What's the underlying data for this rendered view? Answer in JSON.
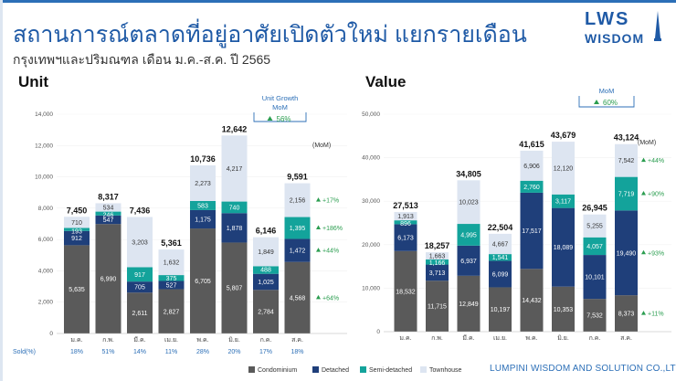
{
  "header": {
    "title": "สถานการณ์ตลาดที่อยู่อาศัยเปิดตัวใหม่ แยกรายเดือน",
    "subtitle": "กรุงเทพฯและปริมณฑล เดือน ม.ค.-ส.ค. ปี 2565"
  },
  "logo": {
    "line1": "LWS",
    "line2": "WISDOM"
  },
  "footer": "LUMPINI WISDOM AND SOLUTION CO.,LTD.",
  "colors": {
    "condominium": "#5a5a5a",
    "detached": "#1f3f7a",
    "semi_detached": "#13a39b",
    "townhouse": "#dde5f1",
    "growth": "#2a9d4f",
    "accent": "#2c6fb7"
  },
  "legend": [
    "Condominium",
    "Detached",
    "Semi-detached",
    "Townhouse"
  ],
  "chart_data": [
    {
      "type": "bar",
      "title": "Unit",
      "categories": [
        "ม.ค.",
        "ก.พ.",
        "มี.ค.",
        "เม.ย.",
        "พ.ค.",
        "มิ.ย.",
        "ก.ค.",
        "ส.ค."
      ],
      "series": [
        {
          "name": "Condominium",
          "values": [
            5635,
            6990,
            2611,
            2827,
            6705,
            5807,
            2784,
            4568
          ]
        },
        {
          "name": "Detached",
          "values": [
            912,
            547,
            705,
            527,
            1175,
            1878,
            1025,
            1472
          ]
        },
        {
          "name": "Semi-detached",
          "values": [
            193,
            246,
            917,
            375,
            583,
            740,
            488,
            1395
          ]
        },
        {
          "name": "Townhouse",
          "values": [
            710,
            534,
            3203,
            1632,
            2273,
            4217,
            1849,
            2156
          ]
        }
      ],
      "totals": [
        "7,450",
        "8,317",
        "7,436",
        "5,361",
        "10,736",
        "12,642",
        "6,146",
        "9,591"
      ],
      "ylim": [
        0,
        14000
      ],
      "yticks": [
        "0",
        "2,000",
        "4,000",
        "6,000",
        "8,000",
        "10,000",
        "12,000",
        "14,000"
      ],
      "sold_label": "Sold(%)",
      "sold": [
        "18%",
        "51%",
        "14%",
        "11%",
        "28%",
        "20%",
        "17%",
        "18%"
      ],
      "mom_label": "(MoM)",
      "mom": [
        "+17%",
        "+186%",
        "+44%",
        "+64%"
      ],
      "growth_box": {
        "title": "Unit Growth",
        "sub": "MoM",
        "value": "56%"
      }
    },
    {
      "type": "bar",
      "title": "Value",
      "categories": [
        "ม.ค.",
        "ก.พ.",
        "มี.ค.",
        "เม.ย.",
        "พ.ค.",
        "มิ.ย.",
        "ก.ค.",
        "ส.ค."
      ],
      "series": [
        {
          "name": "Condominium",
          "values": [
            18532,
            11715,
            12849,
            10197,
            14432,
            10353,
            7532,
            8373
          ]
        },
        {
          "name": "Detached",
          "values": [
            6173,
            3713,
            6937,
            6099,
            17517,
            18089,
            10101,
            19490
          ]
        },
        {
          "name": "Semi-detached",
          "values": [
            896,
            1166,
            4995,
            1541,
            2760,
            3117,
            4057,
            7719
          ]
        },
        {
          "name": "Townhouse",
          "values": [
            1913,
            1663,
            10023,
            4667,
            6906,
            12120,
            5255,
            7542
          ]
        }
      ],
      "totals": [
        "27,513",
        "18,257",
        "34,805",
        "22,504",
        "41,615",
        "43,679",
        "26,945",
        "43,124"
      ],
      "ylim": [
        0,
        50000
      ],
      "yticks": [
        "0",
        "10,000",
        "20,000",
        "30,000",
        "40,000",
        "50,000"
      ],
      "mom_label": "(MoM)",
      "mom": [
        "+44%",
        "+90%",
        "+93%",
        "+11%"
      ],
      "growth_box": {
        "title": "Value Growth",
        "sub": "MoM",
        "value": "60%"
      }
    }
  ]
}
